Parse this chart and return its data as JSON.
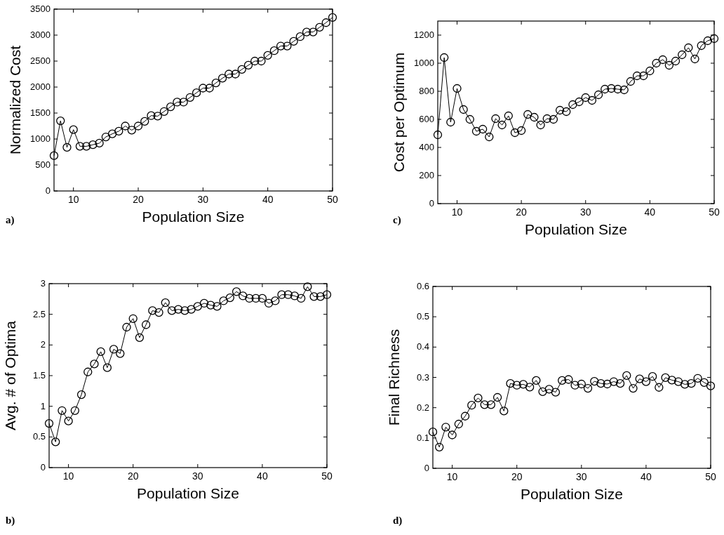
{
  "chart_data": [
    {
      "type": "line",
      "xlabel": "Population Size",
      "ylabel": "Normalized Cost",
      "xlim": [
        7,
        50
      ],
      "xticks": [
        10,
        20,
        30,
        40,
        50
      ],
      "ylim": [
        0,
        3500
      ],
      "yticks": [
        0,
        500,
        1000,
        1500,
        2000,
        2500,
        3000,
        3500
      ],
      "marker": "circle",
      "line_style": "solid",
      "grid": false,
      "annotations": [
        "a)"
      ],
      "x": [
        7,
        8,
        9,
        10,
        11,
        12,
        13,
        14,
        15,
        16,
        17,
        18,
        19,
        20,
        21,
        22,
        23,
        24,
        25,
        26,
        27,
        28,
        29,
        30,
        31,
        32,
        33,
        34,
        35,
        36,
        37,
        38,
        39,
        40,
        41,
        42,
        43,
        44,
        45,
        46,
        47,
        48,
        49,
        50
      ],
      "series": [
        {
          "color": "#000000",
          "values": [
            680,
            1350,
            840,
            1180,
            860,
            860,
            890,
            920,
            1040,
            1100,
            1150,
            1250,
            1170,
            1250,
            1340,
            1450,
            1440,
            1530,
            1620,
            1710,
            1710,
            1800,
            1890,
            1980,
            1980,
            2080,
            2170,
            2250,
            2250,
            2340,
            2420,
            2500,
            2500,
            2610,
            2700,
            2790,
            2790,
            2880,
            2970,
            3060,
            3060,
            3150,
            3240,
            3340
          ]
        }
      ]
    },
    {
      "type": "line",
      "xlabel": "Population Size",
      "ylabel": "Avg. # of Optima",
      "xlim": [
        7,
        50
      ],
      "xticks": [
        10,
        20,
        30,
        40,
        50
      ],
      "ylim": [
        0,
        3
      ],
      "yticks": [
        0,
        0.5,
        1,
        1.5,
        2,
        2.5,
        3
      ],
      "marker": "circle",
      "line_style": "solid",
      "grid": false,
      "annotations": [
        "b)"
      ],
      "x": [
        7,
        8,
        9,
        10,
        11,
        12,
        13,
        14,
        15,
        16,
        17,
        18,
        19,
        20,
        21,
        22,
        23,
        24,
        25,
        26,
        27,
        28,
        29,
        30,
        31,
        32,
        33,
        34,
        35,
        36,
        37,
        38,
        39,
        40,
        41,
        42,
        43,
        44,
        45,
        46,
        47,
        48,
        49,
        50
      ],
      "series": [
        {
          "color": "#000000",
          "values": [
            0.72,
            0.42,
            0.93,
            0.76,
            0.93,
            1.19,
            1.56,
            1.69,
            1.89,
            1.63,
            1.93,
            1.86,
            2.29,
            2.43,
            2.12,
            2.33,
            2.56,
            2.53,
            2.69,
            2.56,
            2.58,
            2.56,
            2.58,
            2.63,
            2.68,
            2.65,
            2.63,
            2.72,
            2.77,
            2.87,
            2.8,
            2.76,
            2.76,
            2.76,
            2.68,
            2.72,
            2.82,
            2.82,
            2.8,
            2.76,
            2.95,
            2.79,
            2.79,
            2.82
          ]
        }
      ]
    },
    {
      "type": "line",
      "xlabel": "Population Size",
      "ylabel": "Cost per Optimum",
      "xlim": [
        7,
        50
      ],
      "xticks": [
        10,
        20,
        30,
        40,
        50
      ],
      "ylim": [
        0,
        1300
      ],
      "yticks": [
        0,
        200,
        400,
        600,
        800,
        1000,
        1200
      ],
      "marker": "circle",
      "line_style": "solid",
      "grid": false,
      "annotations": [
        "c)"
      ],
      "x": [
        7,
        8,
        9,
        10,
        11,
        12,
        13,
        14,
        15,
        16,
        17,
        18,
        19,
        20,
        21,
        22,
        23,
        24,
        25,
        26,
        27,
        28,
        29,
        30,
        31,
        32,
        33,
        34,
        35,
        36,
        37,
        38,
        39,
        40,
        41,
        42,
        43,
        44,
        45,
        46,
        47,
        48,
        49,
        50
      ],
      "series": [
        {
          "color": "#000000",
          "values": [
            490,
            1040,
            580,
            820,
            670,
            600,
            515,
            530,
            475,
            605,
            560,
            625,
            505,
            520,
            635,
            615,
            560,
            605,
            600,
            665,
            655,
            705,
            725,
            755,
            735,
            775,
            815,
            820,
            815,
            810,
            870,
            910,
            910,
            945,
            1000,
            1025,
            985,
            1015,
            1060,
            1110,
            1030,
            1125,
            1160,
            1175
          ]
        }
      ]
    },
    {
      "type": "line",
      "xlabel": "Population Size",
      "ylabel": "Final Richness",
      "xlim": [
        7,
        50
      ],
      "xticks": [
        10,
        20,
        30,
        40,
        50
      ],
      "ylim": [
        0,
        0.6
      ],
      "yticks": [
        0,
        0.1,
        0.2,
        0.3,
        0.4,
        0.5,
        0.6
      ],
      "marker": "circle",
      "line_style": "solid",
      "grid": false,
      "annotations": [
        "d)"
      ],
      "x": [
        7,
        8,
        9,
        10,
        11,
        12,
        13,
        14,
        15,
        16,
        17,
        18,
        19,
        20,
        21,
        22,
        23,
        24,
        25,
        26,
        27,
        28,
        29,
        30,
        31,
        32,
        33,
        34,
        35,
        36,
        37,
        38,
        39,
        40,
        41,
        42,
        43,
        44,
        45,
        46,
        47,
        48,
        49,
        50
      ],
      "series": [
        {
          "color": "#000000",
          "values": [
            0.12,
            0.07,
            0.136,
            0.11,
            0.146,
            0.172,
            0.208,
            0.232,
            0.21,
            0.21,
            0.234,
            0.189,
            0.28,
            0.274,
            0.277,
            0.268,
            0.29,
            0.253,
            0.261,
            0.251,
            0.29,
            0.293,
            0.274,
            0.278,
            0.264,
            0.287,
            0.28,
            0.278,
            0.286,
            0.28,
            0.306,
            0.264,
            0.295,
            0.286,
            0.303,
            0.267,
            0.299,
            0.291,
            0.286,
            0.277,
            0.28,
            0.297,
            0.283,
            0.272
          ]
        }
      ]
    }
  ]
}
